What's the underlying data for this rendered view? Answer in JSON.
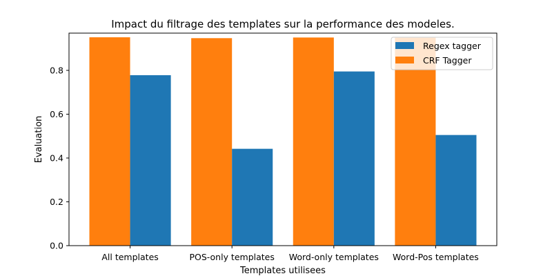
{
  "chart_data": {
    "type": "bar",
    "title": "Impact du filtrage des templates sur la performance des modeles.",
    "xlabel": "Templates utilisees",
    "ylabel": "Evaluation",
    "categories": [
      "All templates",
      "POS-only templates",
      "Word-only templates",
      "Word-Pos templates"
    ],
    "series": [
      {
        "name": "CRF Tagger",
        "color": "#ff7f0e",
        "values": [
          0.951,
          0.947,
          0.95,
          0.949
        ]
      },
      {
        "name": "Regex tagger",
        "color": "#1f77b4",
        "values": [
          0.778,
          0.442,
          0.795,
          0.505
        ]
      }
    ],
    "ylim": [
      0,
      0.97
    ],
    "yticks": [
      "0.0",
      "0.2",
      "0.4",
      "0.6",
      "0.8"
    ],
    "legend": {
      "placement": "top-right",
      "entries": [
        {
          "label": "Regex tagger",
          "color": "#1f77b4"
        },
        {
          "label": "CRF Tagger",
          "color": "#ff7f0e"
        }
      ]
    },
    "grid": false
  }
}
